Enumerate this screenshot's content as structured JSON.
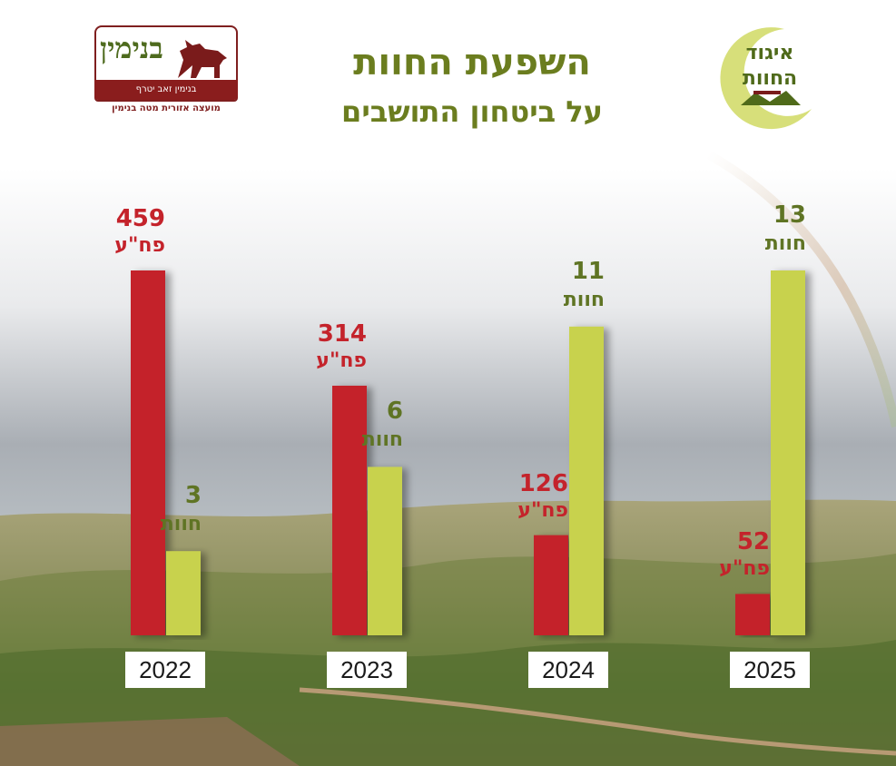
{
  "header": {
    "title": "השפעת החוות",
    "subtitle": "על ביטחון התושבים"
  },
  "logo_left": {
    "name": "בנימין",
    "tagline": "בנימין זאב יטרף",
    "caption": "מועצה אזורית מטה בנימין"
  },
  "logo_right": {
    "line1": "איגוד",
    "line2": "החוות"
  },
  "colors": {
    "title": "#6b7d1f",
    "attacks_bar": "#c4232b",
    "farms_bar": "#c8d24e",
    "attacks_label": "#c4232b",
    "farms_label": "#5f7424"
  },
  "chart_data": {
    "type": "bar",
    "title": "השפעת החוות",
    "subtitle": "על ביטחון התושבים",
    "categories": [
      "2022",
      "2023",
      "2024",
      "2025"
    ],
    "series": [
      {
        "name": "פח\"ע",
        "values": [
          459,
          314,
          126,
          52
        ]
      },
      {
        "name": "חוות",
        "values": [
          3,
          6,
          11,
          13
        ]
      }
    ],
    "xlabel": "",
    "ylabel": "",
    "grid": false,
    "legend": "none"
  }
}
